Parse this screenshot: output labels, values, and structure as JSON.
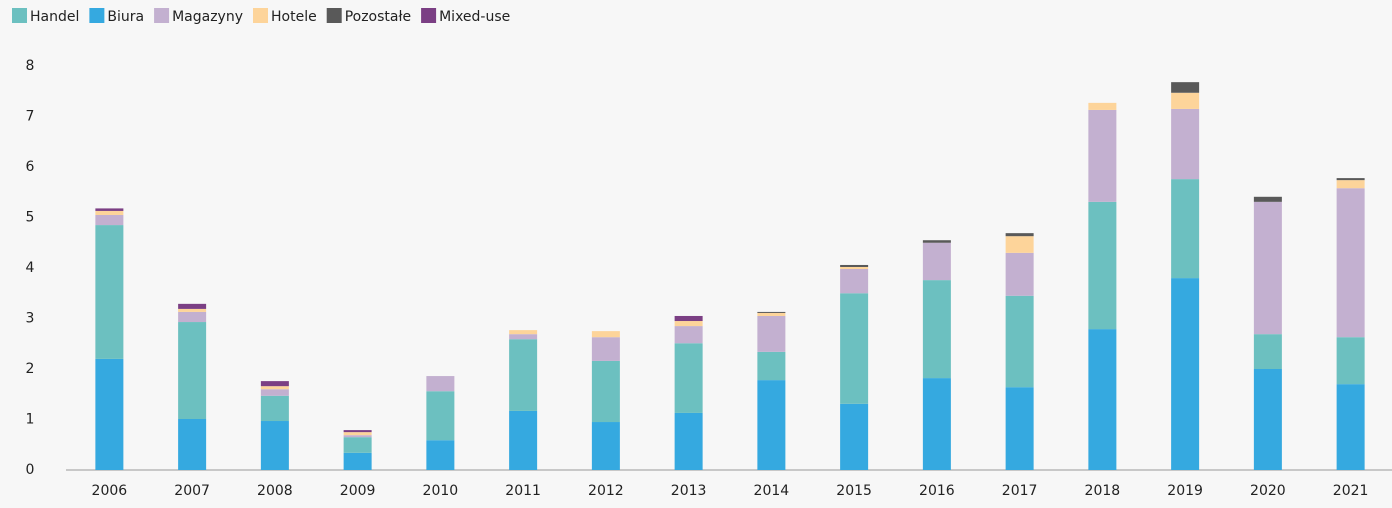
{
  "chart_data": {
    "type": "stacked-bar",
    "categories": [
      "2006",
      "2007",
      "2008",
      "2009",
      "2010",
      "2011",
      "2012",
      "2013",
      "2014",
      "2015",
      "2016",
      "2017",
      "2018",
      "2019",
      "2020",
      "2021"
    ],
    "series": [
      {
        "name": "Handel",
        "color": "#6cc0c0",
        "values": [
          2.65,
          1.92,
          0.5,
          0.31,
          0.97,
          1.42,
          1.21,
          1.38,
          0.56,
          2.19,
          1.94,
          1.81,
          2.52,
          1.96,
          0.69,
          0.93
        ]
      },
      {
        "name": "Biura",
        "color": "#35a9e0",
        "values": [
          2.2,
          1.01,
          0.97,
          0.34,
          0.59,
          1.17,
          0.95,
          1.13,
          1.78,
          1.31,
          1.82,
          1.64,
          2.79,
          3.8,
          2.0,
          1.7
        ]
      },
      {
        "name": "Magazyny",
        "color": "#c3b0d0",
        "values": [
          0.2,
          0.2,
          0.13,
          0.04,
          0.3,
          0.1,
          0.47,
          0.34,
          0.71,
          0.48,
          0.74,
          0.85,
          1.82,
          1.39,
          2.62,
          2.95
        ]
      },
      {
        "name": "Hotele",
        "color": "#fdd49a",
        "values": [
          0.08,
          0.06,
          0.06,
          0.06,
          0,
          0.08,
          0.12,
          0.1,
          0.06,
          0.04,
          0,
          0.33,
          0.14,
          0.32,
          0,
          0.16
        ]
      },
      {
        "name": "Pozostałe",
        "color": "#595959",
        "values": [
          0,
          0,
          0,
          0,
          0,
          0,
          0,
          0,
          0.02,
          0.04,
          0.05,
          0.06,
          0,
          0.21,
          0.1,
          0.04
        ]
      },
      {
        "name": "Mixed-use",
        "color": "#7b3f84",
        "values": [
          0.05,
          0.1,
          0.1,
          0.04,
          0,
          0,
          0,
          0.1,
          0,
          0,
          0,
          0,
          0,
          0,
          0,
          0
        ]
      }
    ],
    "stack_order": [
      1,
      0,
      2,
      3,
      4,
      5
    ],
    "ylim": [
      0,
      8
    ],
    "yticks": [
      0,
      1,
      2,
      3,
      4,
      5,
      6,
      7,
      8
    ],
    "grid": false,
    "legend": "top-left"
  }
}
